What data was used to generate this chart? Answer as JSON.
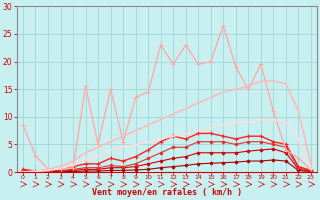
{
  "background_color": "#c8f0f0",
  "grid_color": "#a0d8d8",
  "xlabel": "Vent moyen/en rafales ( km/h )",
  "xlim": [
    -0.5,
    23.5
  ],
  "ylim": [
    0,
    30
  ],
  "yticks": [
    0,
    5,
    10,
    15,
    20,
    25,
    30
  ],
  "xticks": [
    0,
    1,
    2,
    3,
    4,
    5,
    6,
    7,
    8,
    9,
    10,
    11,
    12,
    13,
    14,
    15,
    16,
    17,
    18,
    19,
    20,
    21,
    22,
    23
  ],
  "series": [
    {
      "x": [
        0,
        1,
        2,
        3,
        4,
        5,
        6,
        7,
        8,
        9,
        10,
        11,
        12,
        13,
        14,
        15,
        16,
        17,
        18,
        19,
        20,
        21,
        22,
        23
      ],
      "y": [
        0.1,
        0.1,
        0.1,
        0.1,
        0.1,
        0.2,
        0.2,
        0.3,
        0.3,
        0.4,
        0.5,
        0.8,
        1.0,
        1.2,
        1.5,
        1.6,
        1.7,
        1.8,
        2.0,
        2.0,
        2.2,
        2.0,
        0.3,
        0.1
      ],
      "color": "#aa0000",
      "lw": 0.8,
      "marker": "D",
      "ms": 1.5
    },
    {
      "x": [
        0,
        1,
        2,
        3,
        4,
        5,
        6,
        7,
        8,
        9,
        10,
        11,
        12,
        13,
        14,
        15,
        16,
        17,
        18,
        19,
        20,
        21,
        22,
        23
      ],
      "y": [
        0.2,
        0.1,
        0.1,
        0.2,
        0.3,
        0.5,
        0.5,
        0.8,
        0.8,
        1.0,
        1.5,
        2.0,
        2.5,
        2.8,
        3.5,
        3.5,
        3.5,
        3.5,
        3.8,
        4.0,
        4.2,
        3.5,
        0.5,
        0.1
      ],
      "color": "#cc0000",
      "lw": 0.8,
      "marker": "D",
      "ms": 1.5
    },
    {
      "x": [
        0,
        1,
        2,
        3,
        4,
        5,
        6,
        7,
        8,
        9,
        10,
        11,
        12,
        13,
        14,
        15,
        16,
        17,
        18,
        19,
        20,
        21,
        22,
        23
      ],
      "y": [
        0.3,
        0.1,
        0.2,
        0.3,
        0.5,
        0.8,
        0.8,
        1.2,
        1.0,
        1.5,
        2.5,
        3.5,
        4.5,
        4.5,
        5.5,
        5.5,
        5.5,
        5.0,
        5.5,
        5.5,
        5.0,
        4.5,
        0.8,
        0.2
      ],
      "color": "#dd3333",
      "lw": 0.8,
      "marker": "D",
      "ms": 1.5
    },
    {
      "x": [
        0,
        1,
        2,
        3,
        4,
        5,
        6,
        7,
        8,
        9,
        10,
        11,
        12,
        13,
        14,
        15,
        16,
        17,
        18,
        19,
        20,
        21,
        22,
        23
      ],
      "y": [
        0.5,
        0.2,
        0.3,
        0.5,
        1.0,
        1.5,
        1.5,
        2.5,
        2.0,
        2.8,
        4.0,
        5.5,
        6.5,
        6.0,
        7.0,
        7.0,
        6.5,
        6.0,
        6.5,
        6.5,
        5.5,
        5.0,
        1.0,
        0.3
      ],
      "color": "#ff2222",
      "lw": 1.0,
      "marker": "+",
      "ms": 3
    },
    {
      "x": [
        0,
        1,
        2,
        3,
        4,
        5,
        6,
        7,
        8,
        9,
        10,
        11,
        12,
        13,
        14,
        15,
        16,
        17,
        18,
        19,
        20,
        21,
        22,
        23
      ],
      "y": [
        8.5,
        3.0,
        0.5,
        0.5,
        0.8,
        15.5,
        5.0,
        15.0,
        5.5,
        13.5,
        14.5,
        23.0,
        19.5,
        23.0,
        19.5,
        20.0,
        26.5,
        19.0,
        15.0,
        19.5,
        11.0,
        4.0,
        2.5,
        0.5
      ],
      "color": "#ffaaaa",
      "lw": 1.0,
      "marker": "+",
      "ms": 3
    },
    {
      "x": [
        0,
        1,
        2,
        3,
        4,
        5,
        6,
        7,
        8,
        9,
        10,
        11,
        12,
        13,
        14,
        15,
        16,
        17,
        18,
        19,
        20,
        21,
        22,
        23
      ],
      "y": [
        0.0,
        0.2,
        0.5,
        1.0,
        2.0,
        3.5,
        4.5,
        5.5,
        6.5,
        7.5,
        8.5,
        9.5,
        10.5,
        11.5,
        12.5,
        13.5,
        14.5,
        15.0,
        15.5,
        16.5,
        16.5,
        16.0,
        11.0,
        1.5
      ],
      "color": "#ffbbbb",
      "lw": 1.2,
      "marker": null,
      "ms": 0
    },
    {
      "x": [
        0,
        1,
        2,
        3,
        4,
        5,
        6,
        7,
        8,
        9,
        10,
        11,
        12,
        13,
        14,
        15,
        16,
        17,
        18,
        19,
        20,
        21,
        22,
        23
      ],
      "y": [
        0.0,
        0.1,
        0.3,
        0.7,
        1.2,
        2.2,
        3.0,
        4.0,
        4.5,
        5.0,
        5.5,
        6.0,
        6.5,
        7.0,
        7.5,
        8.0,
        8.5,
        9.0,
        9.0,
        9.5,
        9.5,
        9.0,
        6.0,
        0.5
      ],
      "color": "#ffdddd",
      "lw": 1.2,
      "marker": null,
      "ms": 0
    }
  ],
  "tick_color": "#cc0000",
  "label_color": "#cc0000",
  "spine_color": "#888888",
  "bottom_spine_color": "#cc0000"
}
